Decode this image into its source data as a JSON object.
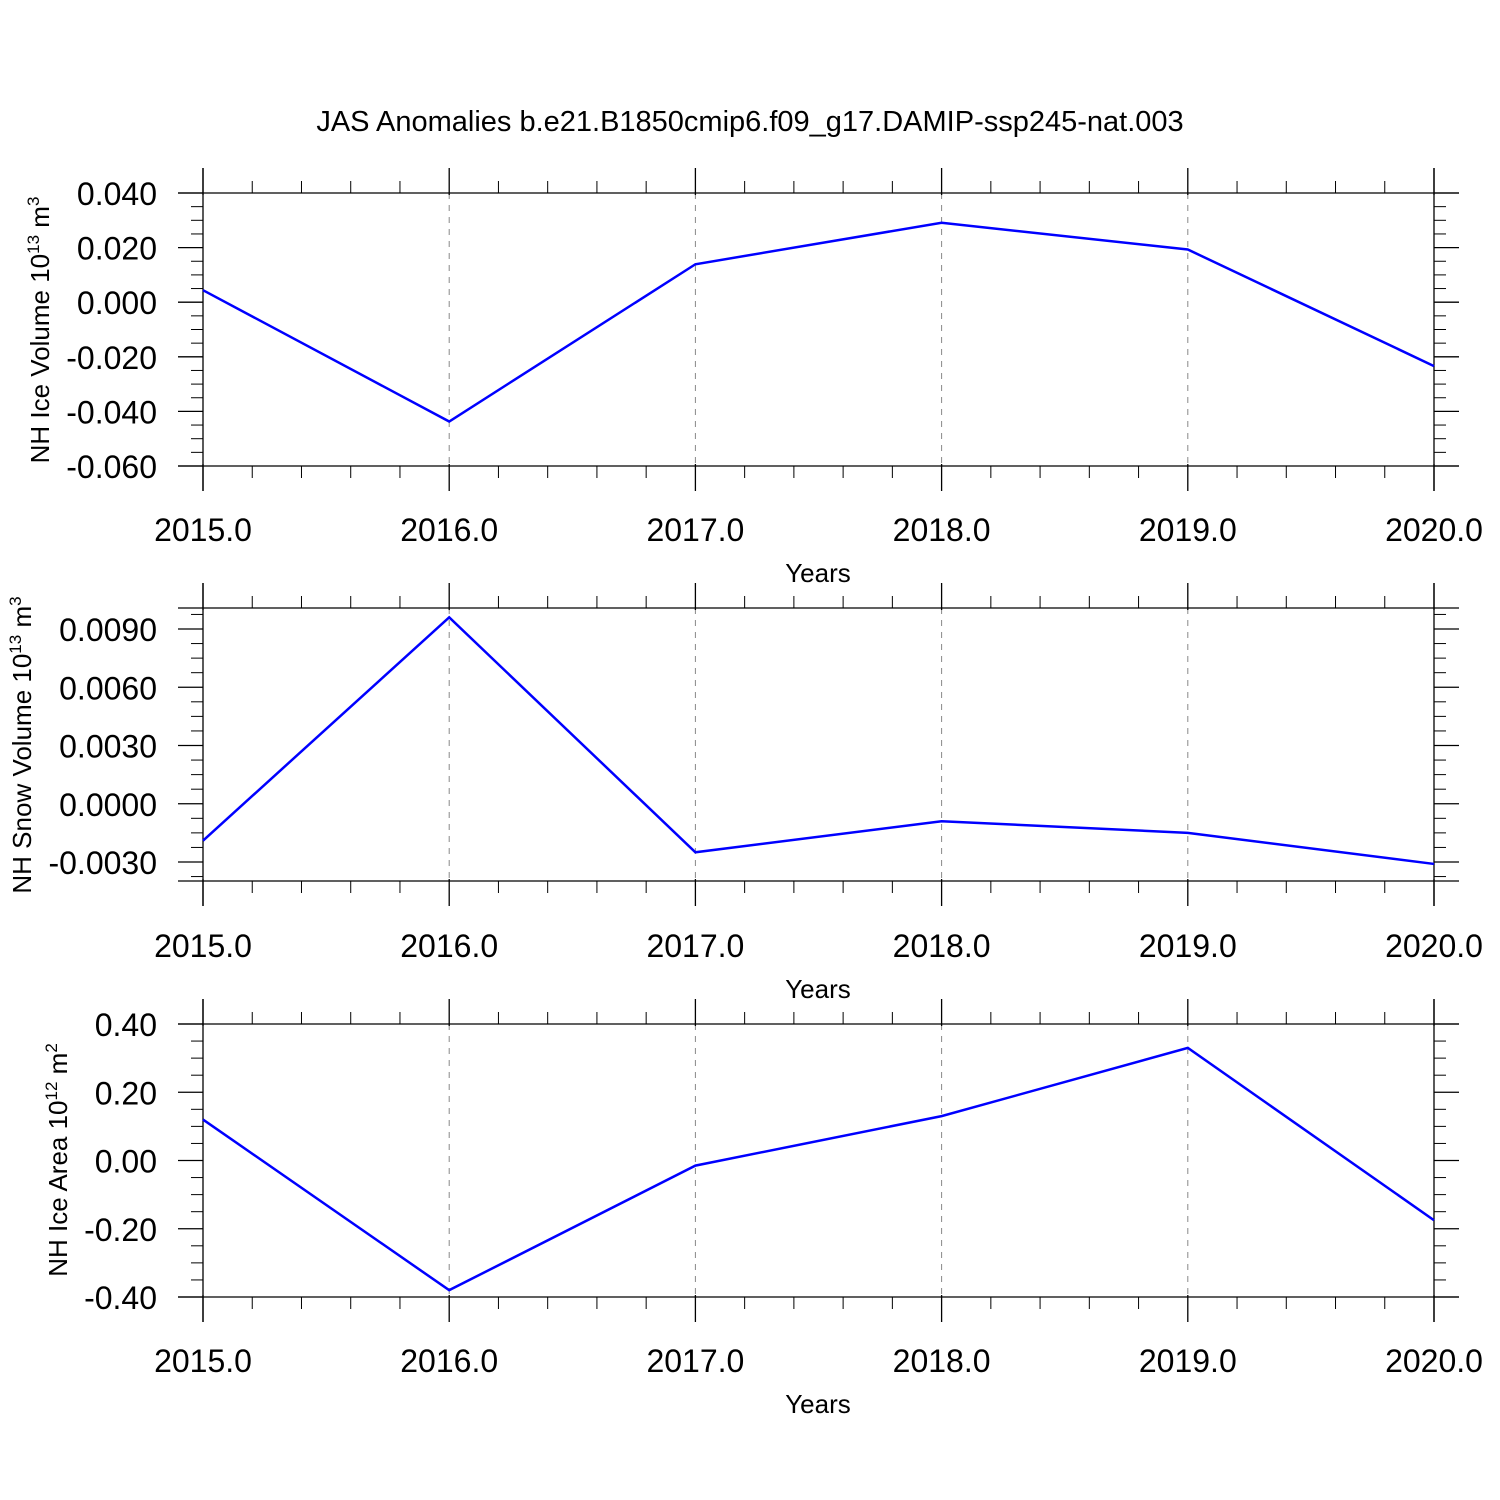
{
  "title": "JAS Anomalies b.e21.B1850cmip6.f09_g17.DAMIP-ssp245-nat.003",
  "line_color": "#0000ff",
  "grid_color": "#888888",
  "chart_data": [
    {
      "type": "line",
      "xlabel": "Years",
      "ylabel": {
        "prefix": "NH Ice Volume 10",
        "exp": "13",
        "unit": " m",
        "unit_exp": "3"
      },
      "x": [
        2015,
        2016,
        2017,
        2018,
        2019,
        2020
      ],
      "x_ticks": [
        2015,
        2016,
        2017,
        2018,
        2019,
        2020
      ],
      "x_tick_labels": [
        "2015.0",
        "2016.0",
        "2017.0",
        "2018.0",
        "2019.0",
        "2020.0"
      ],
      "xlim": [
        2015,
        2020
      ],
      "ylim": [
        -0.06,
        0.04
      ],
      "y_ticks": [
        0.04,
        0.02,
        0.0,
        -0.02,
        -0.04,
        -0.06
      ],
      "y_tick_labels": [
        "0.040",
        "0.020",
        "0.000",
        "-0.020",
        "-0.040",
        "-0.060"
      ],
      "series": [
        {
          "values": [
            0.0044,
            -0.0437,
            0.0139,
            0.0291,
            0.0193,
            -0.0234
          ]
        }
      ],
      "grid": "vertical dashed at x ticks"
    },
    {
      "type": "line",
      "xlabel": "Years",
      "ylabel": {
        "prefix": "NH Snow Volume 10",
        "exp": "13",
        "unit": " m",
        "unit_exp": "3"
      },
      "x": [
        2015,
        2016,
        2017,
        2018,
        2019,
        2020
      ],
      "x_ticks": [
        2015,
        2016,
        2017,
        2018,
        2019,
        2020
      ],
      "x_tick_labels": [
        "2015.0",
        "2016.0",
        "2017.0",
        "2018.0",
        "2019.0",
        "2020.0"
      ],
      "xlim": [
        2015,
        2020
      ],
      "ylim": [
        -0.004,
        0.01
      ],
      "y_ticks": [
        0.009,
        0.006,
        0.003,
        0.0,
        -0.003
      ],
      "y_tick_labels": [
        "0.0090",
        "0.0060",
        "0.0030",
        "0.0000",
        "-0.0030"
      ],
      "series": [
        {
          "values": [
            -0.0019,
            0.0096,
            -0.0025,
            -0.0009,
            -0.0015,
            -0.0031
          ]
        }
      ],
      "grid": "vertical dashed at x ticks"
    },
    {
      "type": "line",
      "xlabel": "Years",
      "ylabel": {
        "prefix": "NH Ice Area 10",
        "exp": "12",
        "unit": " m",
        "unit_exp": "2"
      },
      "x": [
        2015,
        2016,
        2017,
        2018,
        2019,
        2020
      ],
      "x_ticks": [
        2015,
        2016,
        2017,
        2018,
        2019,
        2020
      ],
      "x_tick_labels": [
        "2015.0",
        "2016.0",
        "2017.0",
        "2018.0",
        "2019.0",
        "2020.0"
      ],
      "xlim": [
        2015,
        2020
      ],
      "ylim": [
        -0.4,
        0.4
      ],
      "y_ticks": [
        0.4,
        0.2,
        0.0,
        -0.2,
        -0.4
      ],
      "y_tick_labels": [
        "0.40",
        "0.20",
        "0.00",
        "-0.20",
        "-0.40"
      ],
      "series": [
        {
          "values": [
            0.12,
            -0.38,
            -0.015,
            0.13,
            0.33,
            -0.175
          ]
        }
      ],
      "grid": "vertical dashed at x ticks"
    }
  ]
}
